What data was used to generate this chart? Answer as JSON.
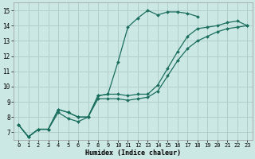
{
  "xlabel": "Humidex (Indice chaleur)",
  "bg_color": "#cce8e4",
  "grid_color": "#b0ceca",
  "line_color": "#1a6e5e",
  "xlim": [
    -0.5,
    23.5
  ],
  "ylim": [
    6.5,
    15.5
  ],
  "xticks": [
    0,
    1,
    2,
    3,
    4,
    5,
    6,
    7,
    8,
    9,
    10,
    11,
    12,
    13,
    14,
    15,
    16,
    17,
    18,
    19,
    20,
    21,
    22,
    23
  ],
  "yticks": [
    7,
    8,
    9,
    10,
    11,
    12,
    13,
    14,
    15
  ],
  "series": [
    {
      "x": [
        0,
        1,
        2,
        3,
        4,
        5,
        6,
        7,
        8,
        9,
        10,
        11,
        12,
        13,
        14,
        15,
        16,
        17,
        18,
        19,
        20,
        21,
        22,
        23
      ],
      "y": [
        7.5,
        6.7,
        7.2,
        7.2,
        8.5,
        8.3,
        8.0,
        8.0,
        9.4,
        9.5,
        11.6,
        13.9,
        14.5,
        15.0,
        14.7,
        14.9,
        14.9,
        14.8,
        14.6,
        null,
        null,
        null,
        null,
        null
      ]
    },
    {
      "x": [
        0,
        1,
        2,
        3,
        4,
        5,
        6,
        7,
        8,
        9,
        10,
        11,
        12,
        13,
        14,
        15,
        16,
        17,
        18,
        19,
        20,
        21,
        22,
        23
      ],
      "y": [
        7.5,
        6.7,
        7.2,
        7.2,
        8.5,
        8.3,
        8.0,
        8.0,
        9.4,
        9.5,
        9.5,
        9.4,
        9.5,
        9.5,
        10.1,
        11.2,
        12.3,
        13.3,
        13.8,
        13.9,
        14.0,
        14.2,
        14.3,
        14.0
      ]
    },
    {
      "x": [
        0,
        1,
        2,
        3,
        4,
        5,
        6,
        7,
        8,
        9,
        10,
        11,
        12,
        13,
        14,
        15,
        16,
        17,
        18,
        19,
        20,
        21,
        22,
        23
      ],
      "y": [
        7.5,
        6.7,
        7.2,
        7.2,
        8.3,
        7.9,
        7.7,
        8.0,
        9.2,
        9.2,
        9.2,
        9.1,
        9.2,
        9.3,
        9.7,
        10.7,
        11.7,
        12.5,
        13.0,
        13.3,
        13.6,
        13.8,
        13.9,
        14.0
      ]
    }
  ]
}
